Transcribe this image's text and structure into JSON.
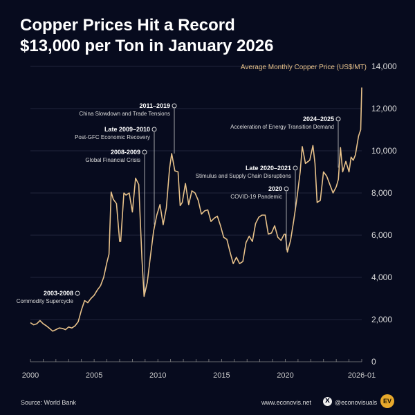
{
  "chart_data": {
    "type": "line",
    "title": "Copper Prices Hit a Record $13,000 per Ton in January 2026",
    "ylabel": "Average Monthly Copper Price (US$/MT)",
    "ylim": [
      0,
      14000
    ],
    "xlim": [
      "2000-01",
      "2026-01"
    ],
    "yticks": [
      "0",
      "2,000",
      "4,000",
      "6,000",
      "8,000",
      "10,000",
      "12,000",
      "14,000"
    ],
    "xticks": [
      "2000",
      "2005",
      "2010",
      "2015",
      "2020",
      "2026-01"
    ],
    "grid": true,
    "line_color": "#e8c28a",
    "series": [
      {
        "x": [
          "2000-01",
          "2000-04",
          "2000-07",
          "2000-10",
          "2001-01",
          "2001-04",
          "2001-07",
          "2001-10",
          "2002-01",
          "2002-04",
          "2002-07",
          "2002-10",
          "2003-01",
          "2003-04",
          "2003-07",
          "2003-10",
          "2004-01",
          "2004-04",
          "2004-07",
          "2004-10",
          "2005-01",
          "2005-04",
          "2005-07",
          "2005-10",
          "2006-01",
          "2006-03",
          "2006-05",
          "2006-07",
          "2006-10",
          "2007-01",
          "2007-02",
          "2007-05",
          "2007-07",
          "2007-10",
          "2008-01",
          "2008-04",
          "2008-07",
          "2008-10",
          "2008-12",
          "2009-03",
          "2009-06",
          "2009-09",
          "2009-12",
          "2010-03",
          "2010-06",
          "2010-09",
          "2010-12",
          "2011-02",
          "2011-05",
          "2011-08",
          "2011-10",
          "2011-12",
          "2012-03",
          "2012-06",
          "2012-09",
          "2012-12",
          "2013-03",
          "2013-06",
          "2013-09",
          "2013-12",
          "2014-03",
          "2014-06",
          "2014-09",
          "2014-12",
          "2015-03",
          "2015-06",
          "2015-09",
          "2015-12",
          "2016-03",
          "2016-06",
          "2016-09",
          "2016-12",
          "2017-03",
          "2017-06",
          "2017-09",
          "2017-12",
          "2018-03",
          "2018-06",
          "2018-09",
          "2018-12",
          "2019-03",
          "2019-06",
          "2019-09",
          "2019-12",
          "2020-01",
          "2020-03",
          "2020-06",
          "2020-09",
          "2020-12",
          "2021-03",
          "2021-05",
          "2021-08",
          "2021-12",
          "2022-03",
          "2022-05",
          "2022-07",
          "2022-10",
          "2023-01",
          "2023-04",
          "2023-07",
          "2023-10",
          "2024-01",
          "2024-03",
          "2024-05",
          "2024-07",
          "2024-10",
          "2025-01",
          "2025-03",
          "2025-05",
          "2025-07",
          "2025-10",
          "2025-12",
          "2026-01"
        ],
        "values": [
          1850,
          1750,
          1800,
          1950,
          1800,
          1700,
          1580,
          1450,
          1520,
          1600,
          1580,
          1520,
          1650,
          1600,
          1700,
          1900,
          2450,
          2900,
          2800,
          3000,
          3150,
          3400,
          3600,
          4000,
          4700,
          5100,
          8050,
          7700,
          7500,
          5700,
          5700,
          8000,
          7900,
          8000,
          7100,
          8700,
          8400,
          4900,
          3100,
          3750,
          5000,
          6200,
          6950,
          7450,
          6500,
          7300,
          9150,
          9870,
          9050,
          9000,
          7400,
          7550,
          8450,
          7450,
          8100,
          8000,
          7650,
          7000,
          7150,
          7200,
          6650,
          6800,
          6900,
          6450,
          5900,
          5800,
          5200,
          4650,
          4950,
          4650,
          4750,
          5650,
          5950,
          5700,
          6550,
          6850,
          6950,
          6950,
          6050,
          6100,
          6450,
          5900,
          5750,
          6050,
          6050,
          5200,
          5750,
          6700,
          7750,
          9000,
          10200,
          9400,
          9550,
          10250,
          9400,
          7550,
          7650,
          9000,
          8800,
          8400,
          8000,
          8300,
          8650,
          10150,
          9000,
          9500,
          9000,
          9700,
          9550,
          9800,
          10700,
          11000,
          13000
        ]
      }
    ]
  },
  "annotations": [
    {
      "period": "2003-2008",
      "text": "Commodity Supercycle"
    },
    {
      "period": "2008-2009",
      "text": "Global Financial Crisis"
    },
    {
      "period": "Late 2009–2010",
      "text": "Post-GFC Economic Recovery"
    },
    {
      "period": "2011–2019",
      "text": "China Slowdown and Trade Tensions"
    },
    {
      "period": "2020",
      "text": "COVID-19 Pandemic"
    },
    {
      "period": "Late 2020–2021",
      "text": "Stimulus and Supply Chain Disruptions"
    },
    {
      "period": "2024–2025",
      "text": "Acceleration of Energy Transition Demand"
    }
  ],
  "footer": {
    "source": "Source: World Bank",
    "website": "www.econovis.net",
    "social_icon": "x-logo-icon",
    "handle": "@econovisuals",
    "logo_text": "EV"
  }
}
